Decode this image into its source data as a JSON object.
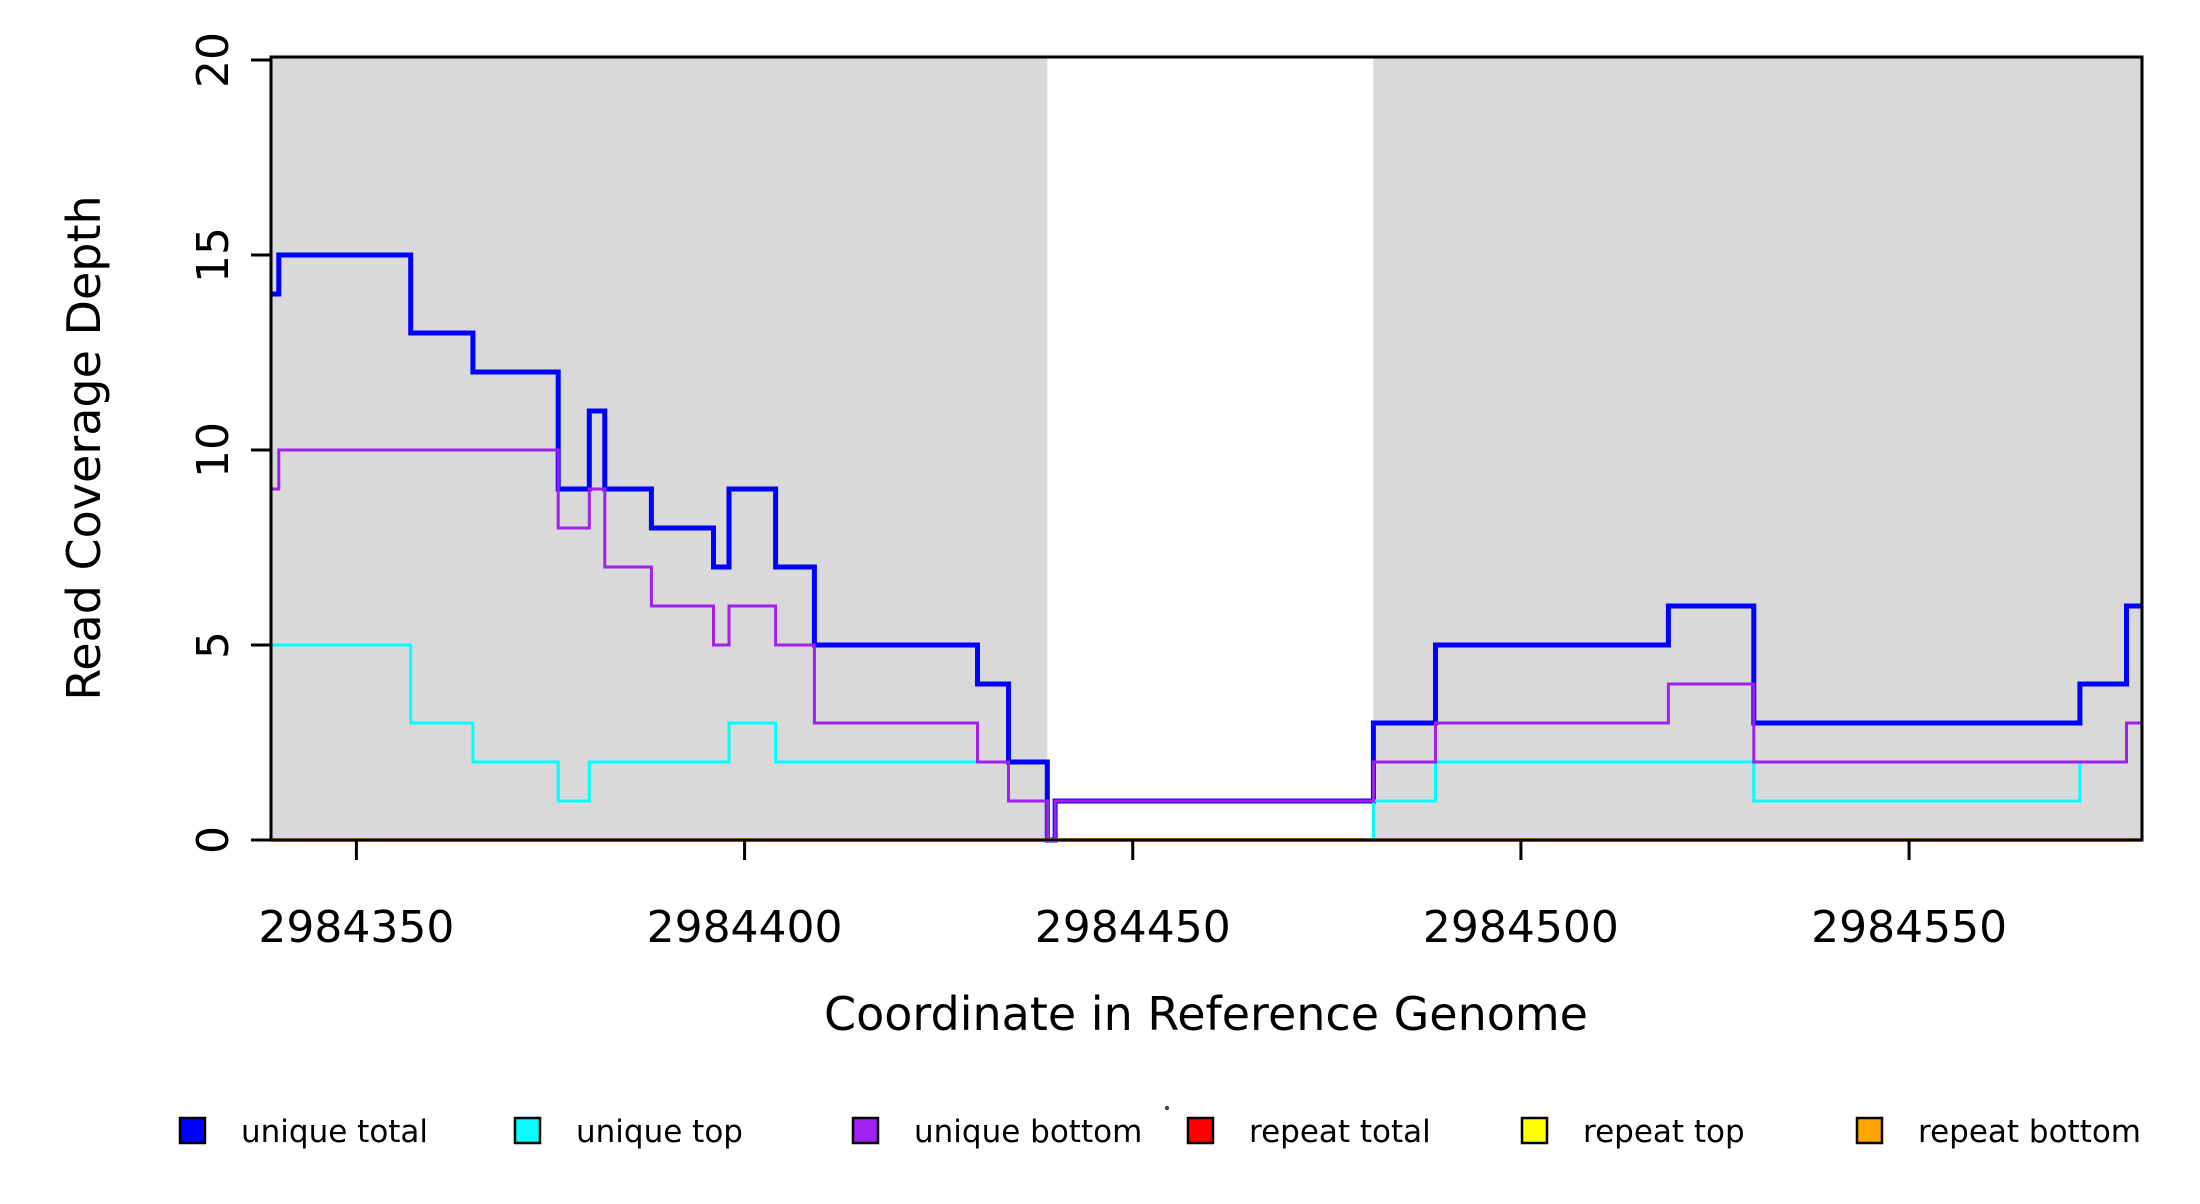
{
  "figure": {
    "background": "#ffffff",
    "plot_background": "#ffffff",
    "shaded_band_color": "#d9d9d9"
  },
  "axes": {
    "x": {
      "title": "Coordinate in Reference Genome",
      "tick_values": [
        2984350,
        2984400,
        2984450,
        2984500,
        2984550
      ],
      "tick_labels": [
        "2984350",
        "2984400",
        "2984450",
        "2984500",
        "2984550"
      ]
    },
    "y": {
      "title": "Read Coverage Depth",
      "tick_values": [
        0,
        5,
        10,
        15,
        20
      ],
      "tick_labels": [
        "0",
        "5",
        "10",
        "15",
        "20"
      ]
    }
  },
  "chart_data": {
    "type": "line",
    "subtype": "step",
    "title": "",
    "xlabel": "Coordinate in Reference Genome",
    "ylabel": "Read Coverage Depth",
    "xlim": [
      2984339,
      2984580
    ],
    "ylim": [
      0,
      20
    ],
    "grid": false,
    "legend_position": "bottom",
    "shaded_regions": [
      {
        "x0": 2984339,
        "x1": 2984439
      },
      {
        "x0": 2984481,
        "x1": 2984580
      }
    ],
    "series": [
      {
        "name": "unique total",
        "color": "#0000ff",
        "line_width": 5,
        "steps": [
          [
            2984339,
            14
          ],
          [
            2984340,
            15
          ],
          [
            2984357,
            13
          ],
          [
            2984365,
            12
          ],
          [
            2984376,
            9
          ],
          [
            2984380,
            11
          ],
          [
            2984382,
            9
          ],
          [
            2984388,
            8
          ],
          [
            2984396,
            7
          ],
          [
            2984398,
            9
          ],
          [
            2984404,
            7
          ],
          [
            2984409,
            5
          ],
          [
            2984430,
            4
          ],
          [
            2984434,
            2
          ],
          [
            2984439,
            0
          ],
          [
            2984440,
            1
          ],
          [
            2984481,
            3
          ],
          [
            2984489,
            5
          ],
          [
            2984519,
            6
          ],
          [
            2984530,
            3
          ],
          [
            2984572,
            4
          ],
          [
            2984578,
            6
          ]
        ]
      },
      {
        "name": "unique top",
        "color": "#00ffff",
        "line_width": 3,
        "steps": [
          [
            2984339,
            5
          ],
          [
            2984357,
            3
          ],
          [
            2984365,
            2
          ],
          [
            2984376,
            1
          ],
          [
            2984380,
            2
          ],
          [
            2984398,
            3
          ],
          [
            2984404,
            2
          ],
          [
            2984434,
            1
          ],
          [
            2984439,
            0
          ],
          [
            2984481,
            1
          ],
          [
            2984489,
            2
          ],
          [
            2984530,
            1
          ],
          [
            2984572,
            2
          ],
          [
            2984578,
            3
          ]
        ]
      },
      {
        "name": "unique bottom",
        "color": "#a020f0",
        "line_width": 3,
        "steps": [
          [
            2984339,
            9
          ],
          [
            2984340,
            10
          ],
          [
            2984376,
            8
          ],
          [
            2984380,
            9
          ],
          [
            2984382,
            7
          ],
          [
            2984388,
            6
          ],
          [
            2984396,
            5
          ],
          [
            2984398,
            6
          ],
          [
            2984404,
            5
          ],
          [
            2984409,
            3
          ],
          [
            2984430,
            2
          ],
          [
            2984434,
            1
          ],
          [
            2984439,
            0
          ],
          [
            2984440,
            1
          ],
          [
            2984481,
            2
          ],
          [
            2984489,
            3
          ],
          [
            2984519,
            4
          ],
          [
            2984530,
            2
          ],
          [
            2984578,
            3
          ]
        ]
      },
      {
        "name": "repeat total",
        "color": "#ff0000",
        "line_width": 3,
        "steps": [
          [
            2984339,
            0
          ]
        ]
      },
      {
        "name": "repeat top",
        "color": "#ffff00",
        "line_width": 3,
        "steps": [
          [
            2984339,
            0
          ]
        ]
      },
      {
        "name": "repeat bottom",
        "color": "#ffa500",
        "line_width": 4,
        "steps": [
          [
            2984339,
            0
          ]
        ]
      }
    ],
    "draw_order": [
      "unique total",
      "repeat total",
      "repeat top",
      "repeat bottom",
      "unique top",
      "unique bottom"
    ]
  },
  "legend": {
    "entries": [
      {
        "label": "unique total",
        "color": "#0000ff"
      },
      {
        "label": "unique top",
        "color": "#00ffff"
      },
      {
        "label": "unique bottom",
        "color": "#a020f0"
      },
      {
        "label": "repeat total",
        "color": "#ff0000"
      },
      {
        "label": "repeat top",
        "color": "#ffff00"
      },
      {
        "label": "repeat bottom",
        "color": "#ffa500"
      }
    ]
  }
}
